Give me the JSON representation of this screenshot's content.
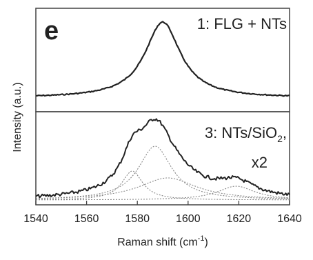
{
  "chart_data": {
    "type": "line",
    "panel_label": "e",
    "xlabel": "Raman shift (cm",
    "xlabel_sup": "-1",
    "xlabel_end": ")",
    "ylabel": "Intensity (a.u.)",
    "xlim": [
      1540,
      1640
    ],
    "x_ticks": [
      "1540",
      "1560",
      "1580",
      "1600",
      "1620",
      "1640"
    ],
    "grid": false,
    "legend": "none",
    "spectra": [
      {
        "label": "1: FLG + NTs",
        "peaks": [
          {
            "center": 1590,
            "hwhm": 8.5,
            "height": 1.0
          }
        ],
        "baseline": 0.0
      },
      {
        "label_main": "3: NTs/SiO",
        "label_sub": "2",
        "label_end": ",",
        "label_line2": "x2",
        "peaks": [
          {
            "center": 1578,
            "hwhm": 5,
            "height": 0.42
          },
          {
            "center": 1587,
            "hwhm": 8,
            "height": 0.78
          },
          {
            "center": 1592,
            "hwhm": 14,
            "height": 0.32
          },
          {
            "center": 1619,
            "hwhm": 9,
            "height": 0.2
          }
        ],
        "fit_components": true
      }
    ]
  }
}
